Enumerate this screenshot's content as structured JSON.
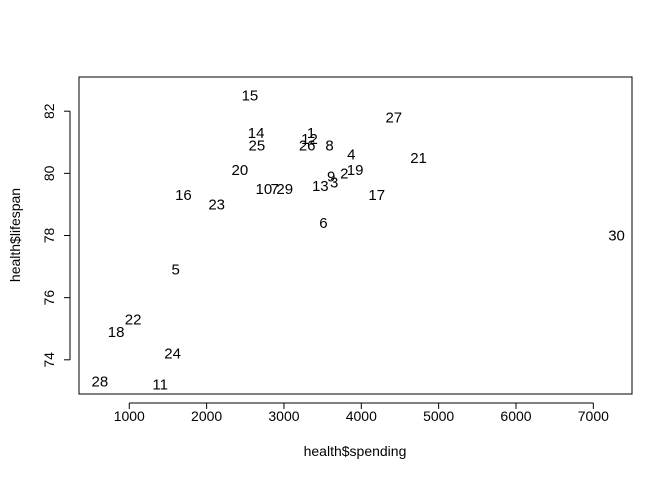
{
  "chart_data": {
    "type": "scatter",
    "title": "",
    "xlabel": "health$spending",
    "ylabel": "health$lifespan",
    "xlim": [
      350,
      7500
    ],
    "ylim": [
      72.9,
      83.1
    ],
    "x_ticks": [
      1000,
      2000,
      3000,
      4000,
      5000,
      6000,
      7000
    ],
    "y_ticks": [
      74,
      76,
      78,
      80,
      82
    ],
    "x_tick_labels": [
      "1000",
      "2000",
      "3000",
      "4000",
      "5000",
      "6000",
      "7000"
    ],
    "y_tick_labels": [
      "74",
      "76",
      "78",
      "80",
      "82"
    ],
    "grid": false,
    "point_style": "text-labels",
    "points": [
      {
        "label": "1",
        "x": 3350,
        "y": 81.3
      },
      {
        "label": "2",
        "x": 3780,
        "y": 80.0
      },
      {
        "label": "3",
        "x": 3650,
        "y": 79.7
      },
      {
        "label": "4",
        "x": 3870,
        "y": 80.6
      },
      {
        "label": "5",
        "x": 1600,
        "y": 76.9
      },
      {
        "label": "6",
        "x": 3510,
        "y": 78.4
      },
      {
        "label": "7",
        "x": 2880,
        "y": 79.5
      },
      {
        "label": "8",
        "x": 3590,
        "y": 80.9
      },
      {
        "label": "9",
        "x": 3610,
        "y": 79.9
      },
      {
        "label": "10",
        "x": 2740,
        "y": 79.5
      },
      {
        "label": "11",
        "x": 1400,
        "y": 73.2
      },
      {
        "label": "12",
        "x": 3330,
        "y": 81.1
      },
      {
        "label": "13",
        "x": 3470,
        "y": 79.6
      },
      {
        "label": "14",
        "x": 2640,
        "y": 81.3
      },
      {
        "label": "15",
        "x": 2560,
        "y": 82.5
      },
      {
        "label": "16",
        "x": 1700,
        "y": 79.3
      },
      {
        "label": "17",
        "x": 4200,
        "y": 79.3
      },
      {
        "label": "18",
        "x": 830,
        "y": 74.9
      },
      {
        "label": "19",
        "x": 3920,
        "y": 80.1
      },
      {
        "label": "20",
        "x": 2430,
        "y": 80.1
      },
      {
        "label": "21",
        "x": 4740,
        "y": 80.5
      },
      {
        "label": "22",
        "x": 1050,
        "y": 75.3
      },
      {
        "label": "23",
        "x": 2130,
        "y": 79.0
      },
      {
        "label": "24",
        "x": 1560,
        "y": 74.2
      },
      {
        "label": "25",
        "x": 2650,
        "y": 80.9
      },
      {
        "label": "26",
        "x": 3300,
        "y": 80.9
      },
      {
        "label": "27",
        "x": 4420,
        "y": 81.8
      },
      {
        "label": "28",
        "x": 620,
        "y": 73.3
      },
      {
        "label": "29",
        "x": 3010,
        "y": 79.5
      },
      {
        "label": "30",
        "x": 7300,
        "y": 78.0
      }
    ]
  }
}
